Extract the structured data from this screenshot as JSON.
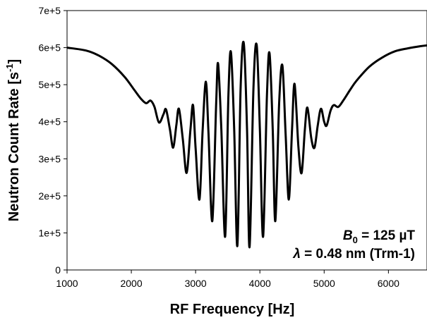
{
  "chart_data": {
    "type": "line",
    "title": "",
    "xlabel": "RF Frequency [Hz]",
    "ylabel_main": "Neutron Count Rate [s",
    "ylabel_sup": "-1",
    "ylabel_close": "]",
    "xlim": [
      1000,
      6600
    ],
    "ylim": [
      0,
      700000
    ],
    "x_ticks": [
      1000,
      2000,
      3000,
      4000,
      5000,
      6000
    ],
    "x_tick_labels": [
      "1000",
      "2000",
      "3000",
      "4000",
      "5000",
      "6000"
    ],
    "y_ticks": [
      0,
      100000,
      200000,
      300000,
      400000,
      500000,
      600000,
      700000
    ],
    "y_tick_labels": [
      "0",
      "1e+5",
      "2e+5",
      "3e+5",
      "4e+5",
      "5e+5",
      "6e+5",
      "7e+5"
    ],
    "grid": false,
    "legend": false,
    "series": [
      {
        "color": "#000000",
        "points": [
          [
            1000,
            600000
          ],
          [
            1300,
            592000
          ],
          [
            1500,
            578000
          ],
          [
            1700,
            555000
          ],
          [
            1900,
            520000
          ],
          [
            2050,
            485000
          ],
          [
            2150,
            462000
          ],
          [
            2230,
            450000
          ],
          [
            2300,
            457000
          ],
          [
            2360,
            440000
          ],
          [
            2430,
            398000
          ],
          [
            2500,
            420000
          ],
          [
            2540,
            433000
          ],
          [
            2600,
            380000
          ],
          [
            2650,
            330000
          ],
          [
            2700,
            390000
          ],
          [
            2740,
            435000
          ],
          [
            2800,
            355000
          ],
          [
            2860,
            262000
          ],
          [
            2920,
            380000
          ],
          [
            2960,
            445000
          ],
          [
            3000,
            330000
          ],
          [
            3060,
            190000
          ],
          [
            3110,
            380000
          ],
          [
            3160,
            508000
          ],
          [
            3200,
            370000
          ],
          [
            3260,
            132000
          ],
          [
            3320,
            450000
          ],
          [
            3350,
            557000
          ],
          [
            3400,
            380000
          ],
          [
            3460,
            90000
          ],
          [
            3510,
            470000
          ],
          [
            3550,
            588000
          ],
          [
            3600,
            380000
          ],
          [
            3650,
            65000
          ],
          [
            3700,
            490000
          ],
          [
            3750,
            612000
          ],
          [
            3800,
            380000
          ],
          [
            3840,
            62000
          ],
          [
            3900,
            490000
          ],
          [
            3950,
            607000
          ],
          [
            4000,
            380000
          ],
          [
            4050,
            90000
          ],
          [
            4110,
            470000
          ],
          [
            4150,
            585000
          ],
          [
            4200,
            380000
          ],
          [
            4240,
            132000
          ],
          [
            4300,
            450000
          ],
          [
            4350,
            552000
          ],
          [
            4400,
            370000
          ],
          [
            4450,
            190000
          ],
          [
            4500,
            380000
          ],
          [
            4540,
            502000
          ],
          [
            4600,
            330000
          ],
          [
            4650,
            262000
          ],
          [
            4700,
            380000
          ],
          [
            4740,
            438000
          ],
          [
            4800,
            355000
          ],
          [
            4850,
            330000
          ],
          [
            4900,
            390000
          ],
          [
            4950,
            435000
          ],
          [
            5000,
            400000
          ],
          [
            5040,
            390000
          ],
          [
            5100,
            430000
          ],
          [
            5150,
            445000
          ],
          [
            5220,
            440000
          ],
          [
            5300,
            458000
          ],
          [
            5400,
            485000
          ],
          [
            5500,
            510000
          ],
          [
            5700,
            548000
          ],
          [
            5900,
            573000
          ],
          [
            6100,
            590000
          ],
          [
            6300,
            598000
          ],
          [
            6500,
            604000
          ],
          [
            6600,
            606000
          ]
        ]
      }
    ],
    "annotations": {
      "line1_sym": "B",
      "line1_sub": "0",
      "line1_rest": " = 125 µT",
      "line2_sym": "λ",
      "line2_rest": " = 0.48 nm (Trm-1)"
    }
  }
}
